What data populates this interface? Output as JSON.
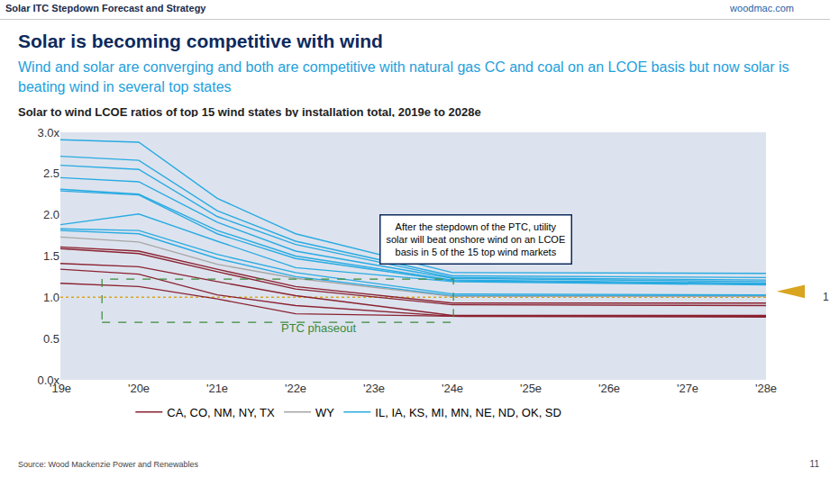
{
  "header": {
    "section": "Solar ITC Stepdown Forecast and Strategy",
    "site": "woodmac.com",
    "title": "Solar is becoming competitive with wind",
    "subtitle": "Wind and solar are converging and both are competitive with natural gas CC and coal on an LCOE basis but now solar is beating wind in several top states"
  },
  "footer": {
    "source": "Source: Wood Mackenzie Power and Renewables",
    "page": "11"
  },
  "chart_data": {
    "type": "line",
    "title": "Solar to wind LCOE ratios of top 15 wind states by installation total, 2019e to 2028e",
    "categories": [
      "'19e",
      "'20e",
      "'21e",
      "'22e",
      "'23e",
      "'24e",
      "'25e",
      "'26e",
      "'27e",
      "'28e"
    ],
    "ylim": [
      0,
      3
    ],
    "yticks": [
      {
        "value": 0,
        "label": "0.0x"
      },
      {
        "value": 0.5,
        "label": "0.5"
      },
      {
        "value": 1,
        "label": "1.0"
      },
      {
        "value": 1.5,
        "label": "1.5"
      },
      {
        "value": 2,
        "label": "2.0"
      },
      {
        "value": 2.5,
        "label": "2.5"
      },
      {
        "value": 3,
        "label": "3.0x"
      }
    ],
    "grid": false,
    "legend": "bottom",
    "series": [
      {
        "name": "IL, IA, KS, MI, MN, NE, ND, OK, SD",
        "color": "#29abe2",
        "values": [
          2.91,
          2.88,
          2.2,
          1.77,
          null,
          1.3,
          null,
          null,
          null,
          1.29
        ]
      },
      {
        "name": "IL, IA, KS, MI, MN, NE, ND, OK, SD",
        "color": "#29abe2",
        "values": [
          2.71,
          2.66,
          2.05,
          1.68,
          null,
          1.26,
          null,
          null,
          null,
          1.24
        ]
      },
      {
        "name": "IL, IA, KS, MI, MN, NE, ND, OK, SD",
        "color": "#29abe2",
        "values": [
          2.6,
          2.55,
          1.98,
          1.64,
          null,
          1.24,
          null,
          null,
          null,
          1.21
        ]
      },
      {
        "name": "IL, IA, KS, MI, MN, NE, ND, OK, SD",
        "color": "#29abe2",
        "values": [
          2.45,
          2.4,
          1.91,
          1.56,
          null,
          1.23,
          null,
          null,
          null,
          1.19
        ]
      },
      {
        "name": "IL, IA, KS, MI, MN, NE, ND, OK, SD",
        "color": "#29abe2",
        "values": [
          2.31,
          2.25,
          1.81,
          1.5,
          null,
          1.21,
          null,
          null,
          null,
          1.17
        ]
      },
      {
        "name": "IL, IA, KS, MI, MN, NE, ND, OK, SD",
        "color": "#29abe2",
        "values": [
          2.29,
          2.24,
          1.77,
          1.47,
          null,
          1.2,
          null,
          null,
          null,
          1.16
        ]
      },
      {
        "name": "IL, IA, KS, MI, MN, NE, ND, OK, SD",
        "color": "#29abe2",
        "values": [
          1.88,
          2.01,
          1.68,
          1.36,
          null,
          1.19,
          null,
          null,
          null,
          1.15
        ]
      },
      {
        "name": "IL, IA, KS, MI, MN, NE, ND, OK, SD",
        "color": "#29abe2",
        "values": [
          1.83,
          1.81,
          1.52,
          1.3,
          null,
          1.04,
          null,
          null,
          null,
          1.03
        ]
      },
      {
        "name": "IL, IA, KS, MI, MN, NE, ND, OK, SD",
        "color": "#29abe2",
        "values": [
          1.81,
          1.77,
          1.47,
          1.25,
          null,
          1.02,
          null,
          null,
          null,
          1.02
        ]
      },
      {
        "name": "WY",
        "color": "#a6a6a6",
        "values": [
          1.73,
          1.67,
          1.4,
          1.23,
          null,
          1.01,
          null,
          null,
          null,
          1.01
        ]
      },
      {
        "name": "CA, CO, NM, NY, TX",
        "color": "#8b2332",
        "values": [
          1.61,
          1.56,
          1.34,
          1.13,
          null,
          0.93,
          null,
          null,
          null,
          0.93
        ]
      },
      {
        "name": "CA, CO, NM, NY, TX",
        "color": "#8b2332",
        "values": [
          1.59,
          1.53,
          1.31,
          1.1,
          null,
          0.91,
          null,
          null,
          null,
          0.9
        ]
      },
      {
        "name": "CA, CO, NM, NY, TX",
        "color": "#8b2332",
        "values": [
          1.41,
          1.37,
          1.19,
          1.02,
          null,
          0.78,
          null,
          null,
          null,
          0.78
        ]
      },
      {
        "name": "CA, CO, NM, NY, TX",
        "color": "#8b2332",
        "values": [
          1.34,
          1.28,
          1.03,
          0.9,
          null,
          0.77,
          null,
          null,
          null,
          0.77
        ]
      },
      {
        "name": "CA, CO, NM, NY, TX",
        "color": "#8b2332",
        "values": [
          1.17,
          1.13,
          0.98,
          0.8,
          null,
          0.77,
          null,
          null,
          null,
          0.76
        ]
      }
    ],
    "annotations": [
      {
        "text": [
          "After the stepdown of the PTC, utility",
          "solar will beat onshore wind on an LCOE",
          "basis in 5 of the 15 top wind markets"
        ]
      },
      {
        "text": "PTC phaseout",
        "color": "#3a8a3a"
      },
      {
        "text": "1",
        "y": 1,
        "color": "#d9a520"
      }
    ]
  }
}
